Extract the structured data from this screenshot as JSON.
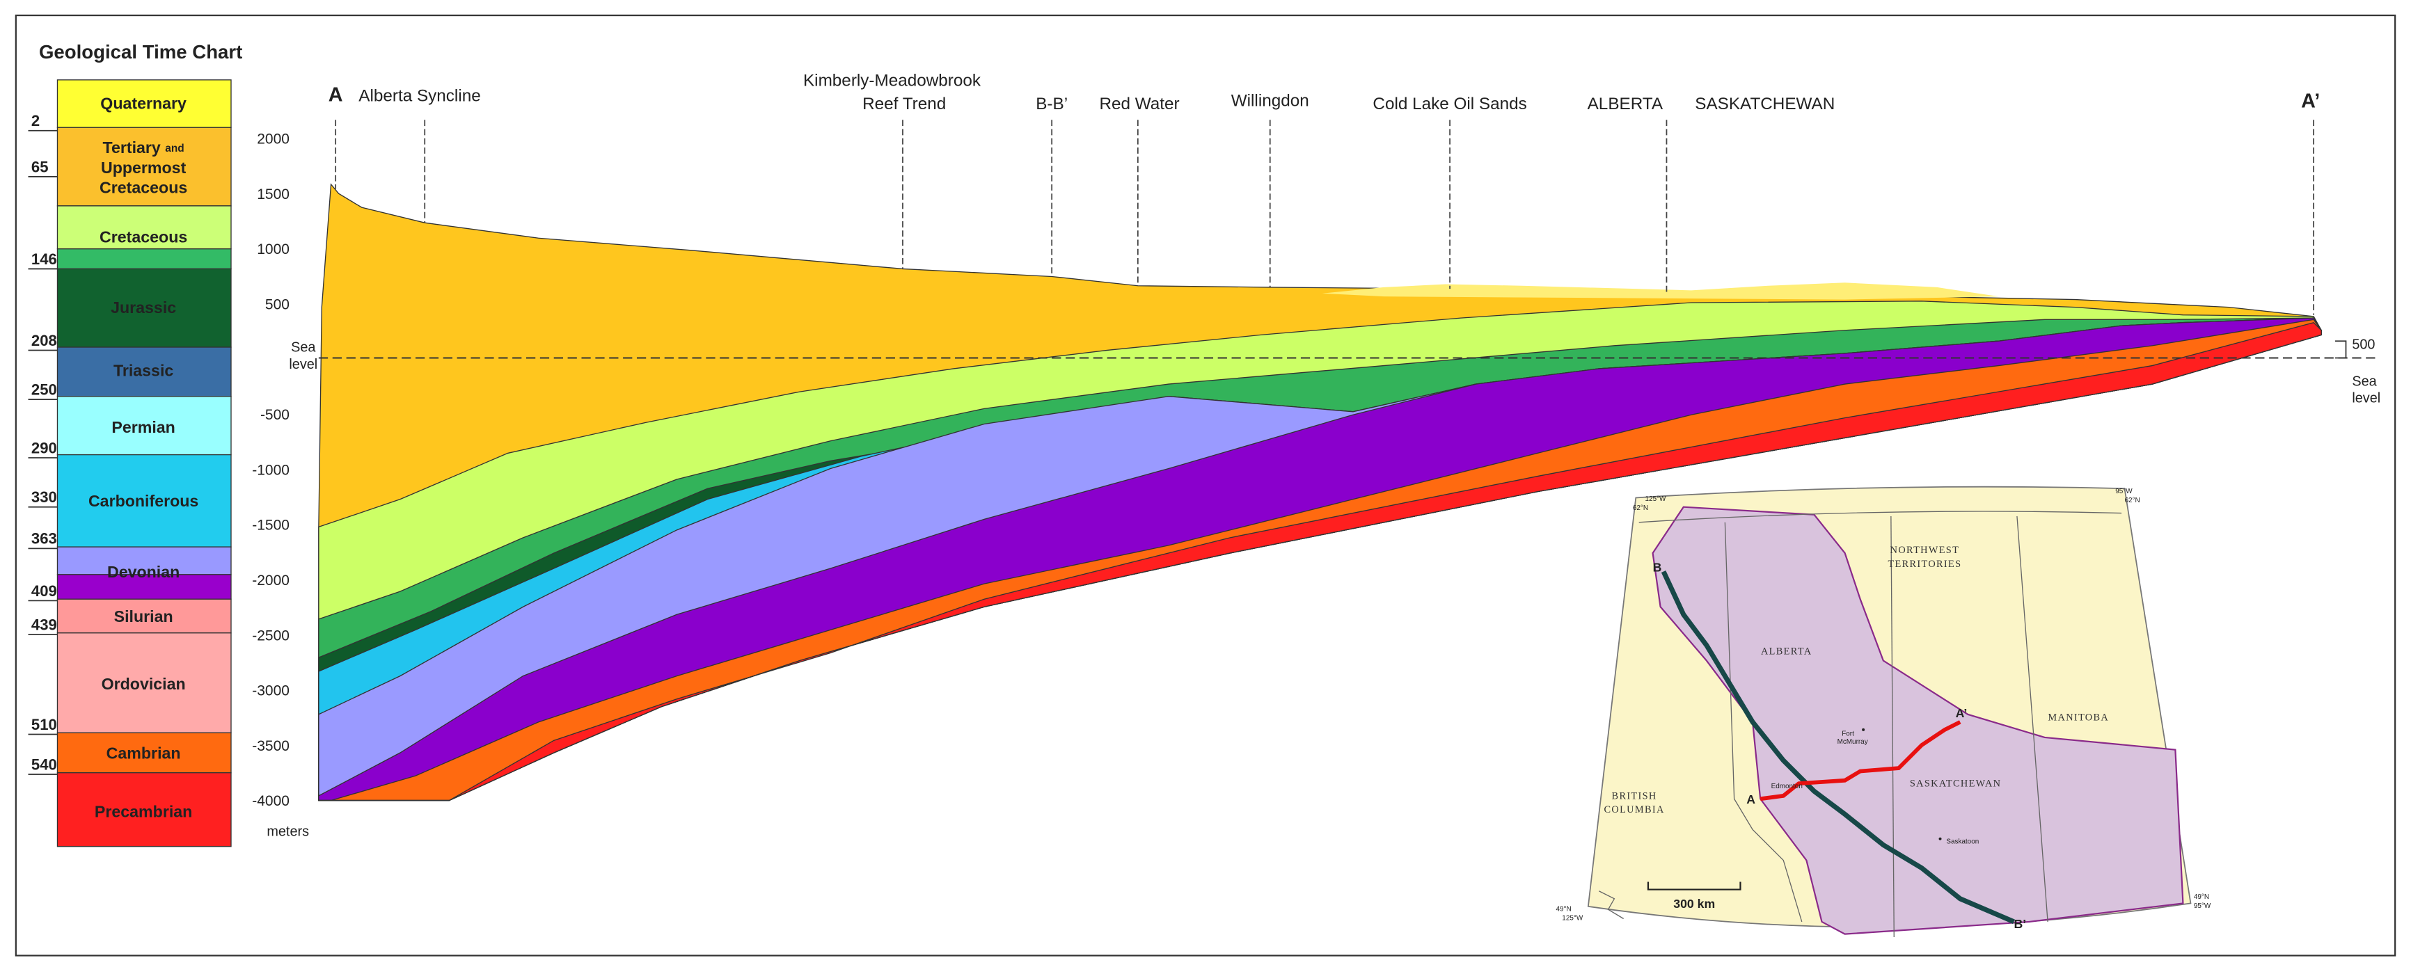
{
  "time_chart": {
    "title": "Geological Time Chart",
    "periods": [
      "Quaternary",
      [
        "Tertiary",
        "and",
        "Uppermost",
        "Cretaceous"
      ],
      "Cretaceous",
      "Jurassic",
      "Triassic",
      "Permian",
      "Carboniferous",
      "Devonian",
      "Silurian",
      "Ordovician",
      "Cambrian",
      "Precambrian"
    ],
    "ages": [
      2,
      65,
      146,
      208,
      250,
      290,
      330,
      363,
      409,
      439,
      510,
      540
    ]
  },
  "cross_section": {
    "y_label": "meters",
    "ylim": [
      -4000,
      2000
    ],
    "yticks": [
      2000,
      1500,
      1000,
      500,
      -500,
      -1000,
      -1500,
      -2000,
      -2500,
      -3000,
      -3500,
      -4000
    ],
    "sea_level_left": [
      "Sea",
      "level"
    ],
    "right_scale": {
      "tick": 500,
      "sea_level": [
        "Sea",
        "level"
      ]
    },
    "start": "A",
    "end": "A’",
    "locations": [
      "Alberta Syncline",
      [
        "Kimberly-Meadowbrook",
        "Reef Trend"
      ],
      "B-B’",
      "Red Water",
      "Willingdon",
      "Cold Lake Oil Sands",
      "ALBERTA",
      "SASKATCHEWAN"
    ]
  },
  "map": {
    "regions": [
      [
        "NORTHWEST",
        "TERRITORIES"
      ],
      "ALBERTA",
      "SASKATCHEWAN",
      "MANITOBA",
      [
        "BRITISH",
        "COLUMBIA"
      ]
    ],
    "cities": [
      [
        "Fort",
        "McMurray"
      ],
      "Edmonton",
      "Saskatoon"
    ],
    "line_ends": [
      "A",
      "A’",
      "B",
      "B’"
    ],
    "scale": "300 km",
    "corners": [
      [
        "125°W",
        "62°N"
      ],
      [
        "95°W",
        "62°N"
      ],
      [
        "49°N",
        "125°W"
      ],
      [
        "49°N",
        "95°W"
      ]
    ]
  }
}
